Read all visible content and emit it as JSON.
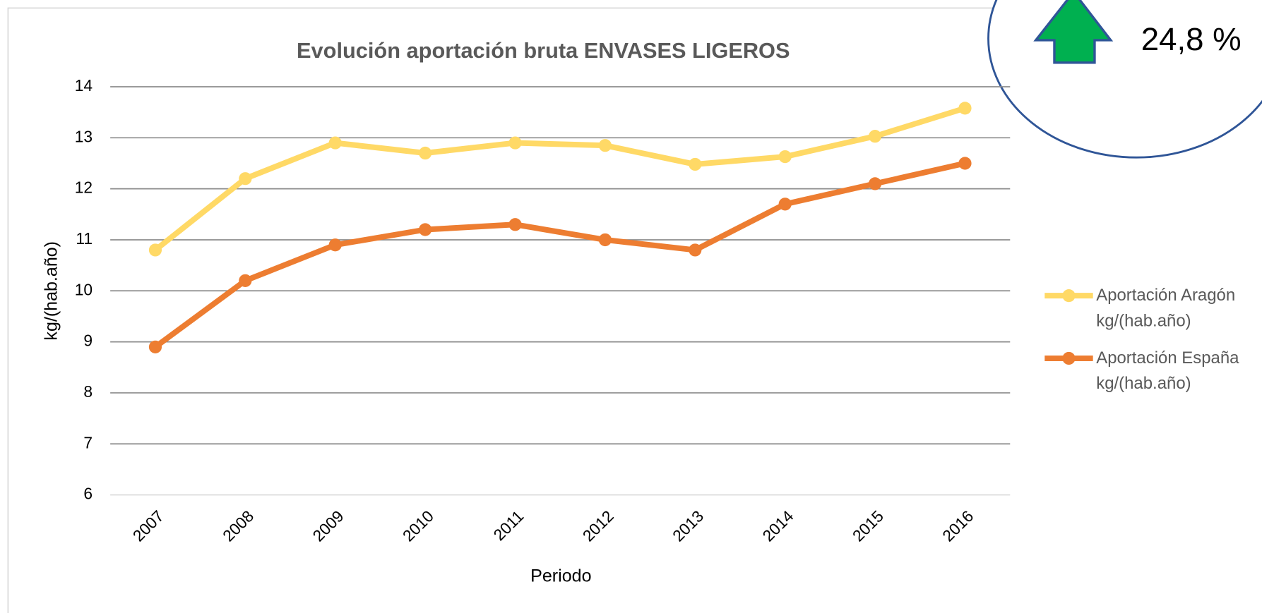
{
  "chart_data": {
    "type": "line",
    "title": "Evolución aportación bruta ENVASES LIGEROS",
    "xlabel": "Periodo",
    "ylabel": "kg/(hab.año)",
    "categories": [
      "2007",
      "2008",
      "2009",
      "2010",
      "2011",
      "2012",
      "2013",
      "2014",
      "2015",
      "2016"
    ],
    "series": [
      {
        "name": "Aportación Aragón kg/(hab.año)",
        "color": "#FFD966",
        "values": [
          10.8,
          12.2,
          12.9,
          12.7,
          12.9,
          12.85,
          12.48,
          12.63,
          13.03,
          13.58
        ]
      },
      {
        "name": "Aportación España kg/(hab.año)",
        "color": "#ED7D31",
        "values": [
          8.9,
          10.2,
          10.9,
          11.2,
          11.3,
          11.0,
          10.8,
          11.7,
          12.1,
          12.5
        ]
      }
    ],
    "ylim": [
      6,
      14
    ],
    "yticks": [
      6,
      7,
      8,
      9,
      10,
      11,
      12,
      13,
      14
    ],
    "grid": true,
    "legend": "right",
    "annotation": "24,8 %"
  }
}
